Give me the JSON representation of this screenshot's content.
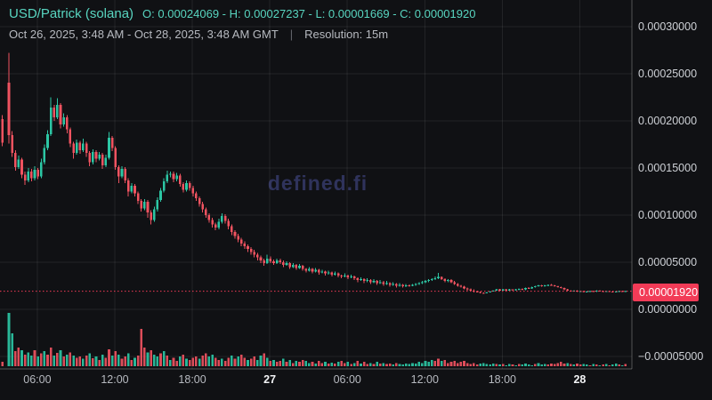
{
  "header": {
    "pair_title": "USD/Patrick (solana)",
    "ohlc_summary": "O: 0.00024069 - H: 0.00027237 - L: 0.00001669 - C: 0.00001920",
    "open": "0.00024069",
    "high": "0.00027237",
    "low": "0.00001669",
    "close": "0.00001920",
    "date_range": "Oct 26, 2025, 3:48 AM - Oct 28, 2025, 3:48 AM GMT",
    "separator": "|",
    "resolution_label": "Resolution: 15m"
  },
  "watermark": "defined.fi",
  "last_price": {
    "label": "0.00001920",
    "value": 1.92
  },
  "colors": {
    "background": "#101114",
    "accent_teal": "#58d5c0",
    "candle_up": "#2cc6a4",
    "candle_down": "#ef5360",
    "last_price_line": "#f23b57",
    "grid": "rgba(255,255,255,0.08)",
    "axis_border": "rgba(255,255,255,0.28)",
    "text_muted": "#b7bac0",
    "text_bright": "#f2f3f5",
    "watermark": "#2f335c"
  },
  "chart_data": {
    "type": "candlestick_with_volume",
    "title": "USD/Patrick (solana)",
    "resolution": "15m",
    "time_range": "Oct 26, 2025, 3:48 AM - Oct 28, 2025, 3:48 AM GMT",
    "price_unit": 1e-05,
    "range_ohlc": {
      "o": 24.069,
      "h": 27.237,
      "l": 1.669,
      "c": 1.92
    },
    "last_close": 1.92,
    "y_ticks": [
      {
        "value": 30,
        "label": "0.00030000"
      },
      {
        "value": 25,
        "label": "0.00025000"
      },
      {
        "value": 20,
        "label": "0.00020000"
      },
      {
        "value": 15,
        "label": "0.00015000"
      },
      {
        "value": 10,
        "label": "0.00010000"
      },
      {
        "value": 5,
        "label": "0.00005000"
      },
      {
        "value": 0,
        "label": "0.00000000"
      },
      {
        "value": -5,
        "label": "−0.00005000"
      }
    ],
    "x_ticks": [
      {
        "label": "06:00",
        "major": false
      },
      {
        "label": "12:00",
        "major": false
      },
      {
        "label": "18:00",
        "major": false
      },
      {
        "label": "27",
        "major": true
      },
      {
        "label": "06:00",
        "major": false
      },
      {
        "label": "12:00",
        "major": false
      },
      {
        "label": "18:00",
        "major": false
      },
      {
        "label": "28",
        "major": true
      }
    ],
    "candles": [
      [
        20.2,
        20.6,
        17.3,
        17.7
      ],
      null,
      [
        24.07,
        27.24,
        17.6,
        18.5
      ],
      [
        18.5,
        18.9,
        16.2,
        16.6
      ],
      [
        16.6,
        16.9,
        14.7,
        15.1
      ],
      [
        15.1,
        16.3,
        14.9,
        15.9
      ],
      [
        15.9,
        16.1,
        13.9,
        14.3
      ],
      [
        14.3,
        14.6,
        13.2,
        13.7
      ],
      [
        13.7,
        15,
        13.5,
        14.6
      ],
      [
        14.6,
        14.9,
        13.6,
        13.9
      ],
      [
        13.9,
        15.2,
        13.7,
        14.8
      ],
      [
        14.8,
        15,
        13.8,
        14.1
      ],
      [
        14.1,
        16,
        13.9,
        15.6
      ],
      [
        15.6,
        17.5,
        15.4,
        17.1
      ],
      [
        17.1,
        19,
        16.9,
        18.6
      ],
      [
        18.6,
        22.5,
        18.4,
        21.4
      ],
      [
        21.4,
        21.7,
        20,
        20.4
      ],
      [
        20.4,
        22.4,
        20.2,
        21.7
      ],
      [
        21.7,
        21.9,
        19.2,
        19.6
      ],
      [
        19.6,
        20.8,
        19.4,
        20.4
      ],
      [
        20.4,
        20.6,
        18.7,
        19.1
      ],
      [
        19.1,
        19.3,
        17.2,
        17.6
      ],
      [
        17.6,
        17.8,
        16,
        16.6
      ],
      [
        16.6,
        18,
        16.4,
        17.7
      ],
      [
        17.7,
        17.9,
        16.5,
        16.9
      ],
      [
        16.9,
        18.1,
        16.7,
        17.6
      ],
      [
        17.6,
        17.8,
        16.2,
        16.6
      ],
      [
        16.6,
        16.8,
        15.2,
        15.6
      ],
      [
        15.6,
        17,
        15.4,
        16.7
      ],
      [
        16.7,
        16.9,
        15.6,
        16
      ],
      [
        16,
        16.7,
        15.8,
        16.4
      ],
      [
        16.4,
        16.6,
        14.9,
        15.3
      ],
      [
        15.3,
        16.4,
        15.1,
        16.1
      ],
      [
        16.1,
        18.8,
        15.9,
        18.2
      ],
      [
        18.2,
        18.4,
        16.8,
        17.1
      ],
      [
        17.1,
        17.3,
        14.8,
        15.1
      ],
      [
        15.1,
        15.3,
        13.4,
        14.1
      ],
      [
        14.1,
        15.2,
        13.9,
        14.9
      ],
      [
        14.9,
        15.1,
        13.4,
        13.7
      ],
      [
        13.7,
        13.9,
        12,
        12.5
      ],
      [
        12.5,
        13.4,
        12.3,
        13.1
      ],
      [
        13.1,
        13.3,
        12,
        12.3
      ],
      [
        12.3,
        12.5,
        11.2,
        11.5
      ],
      [
        11.5,
        11.7,
        10.4,
        10.7
      ],
      [
        10.7,
        11.7,
        10.5,
        11.4
      ],
      [
        11.4,
        11.6,
        9.7,
        10.3
      ],
      [
        10.3,
        10.5,
        9,
        9.5
      ],
      [
        9.5,
        10.9,
        9.3,
        10.6
      ],
      [
        10.6,
        11.9,
        10.4,
        11.6
      ],
      [
        11.6,
        12.9,
        11.4,
        12.6
      ],
      [
        12.6,
        13.9,
        12.4,
        13.6
      ],
      [
        13.6,
        14.7,
        13.4,
        14.3
      ],
      [
        14.3,
        14.6,
        14,
        14.4
      ],
      [
        14.4,
        14.6,
        13.5,
        13.8
      ],
      [
        13.8,
        14.5,
        13.6,
        14.2
      ],
      [
        14.2,
        14.4,
        13,
        13.3
      ],
      [
        13.3,
        13.5,
        12.4,
        12.7
      ],
      [
        12.7,
        13.7,
        12.5,
        13.4
      ],
      [
        13.4,
        13.6,
        12.6,
        12.9
      ],
      [
        12.9,
        13.1,
        12,
        12.3
      ],
      [
        12.3,
        12.5,
        11.5,
        11.8
      ],
      [
        11.8,
        12,
        10.9,
        11.2
      ],
      [
        11.2,
        11.4,
        10.3,
        10.6
      ],
      [
        10.6,
        10.8,
        9.7,
        10
      ],
      [
        10,
        10.2,
        9.2,
        9.5
      ],
      [
        9.5,
        9.7,
        8.7,
        9
      ],
      [
        9,
        9.2,
        8.4,
        8.7
      ],
      [
        8.7,
        9.6,
        8.5,
        9.3
      ],
      [
        9.3,
        10.2,
        9.1,
        9.9
      ],
      [
        9.9,
        10.1,
        9.1,
        9.4
      ],
      [
        9.4,
        9.6,
        8.5,
        8.8
      ],
      [
        8.8,
        9,
        7.9,
        8.2
      ],
      [
        8.2,
        8.4,
        7.5,
        7.8
      ],
      [
        7.8,
        8,
        7.1,
        7.4
      ],
      [
        7.4,
        7.6,
        6.7,
        7
      ],
      [
        7,
        7.2,
        6.4,
        6.7
      ],
      [
        6.7,
        6.9,
        6.1,
        6.4
      ],
      [
        6.4,
        6.6,
        5.8,
        6.1
      ],
      [
        6.1,
        6.3,
        5.5,
        5.8
      ],
      [
        5.8,
        6,
        5.2,
        5.5
      ],
      [
        5.5,
        5.7,
        4.9,
        5.2
      ],
      [
        5.2,
        5.4,
        4.6,
        4.9
      ],
      [
        4.9,
        5.8,
        4.8,
        5.4
      ],
      [
        5.4,
        5.6,
        4.9,
        5.1
      ],
      [
        5.1,
        5.3,
        4.7,
        4.9
      ],
      [
        4.9,
        5.4,
        4.8,
        5.2
      ],
      [
        5.2,
        5.4,
        4.8,
        5
      ],
      [
        5,
        5.2,
        4.5,
        4.7
      ],
      [
        4.7,
        5.1,
        4.6,
        4.9
      ],
      [
        4.9,
        5,
        4.3,
        4.5
      ],
      [
        4.5,
        4.9,
        4.4,
        4.7
      ],
      [
        4.7,
        4.8,
        4.2,
        4.4
      ],
      [
        4.4,
        4.8,
        4.3,
        4.6
      ],
      [
        4.6,
        4.7,
        4.1,
        4.3
      ],
      [
        4.3,
        4.4,
        3.9,
        4.1
      ],
      [
        4.1,
        4.5,
        4,
        4.3
      ],
      [
        4.3,
        4.4,
        3.8,
        4
      ],
      [
        4,
        4.4,
        3.9,
        4.2
      ],
      [
        4.2,
        4.3,
        3.7,
        3.9
      ],
      [
        3.9,
        4.2,
        3.8,
        4
      ],
      [
        4,
        4.1,
        3.6,
        3.8
      ],
      [
        3.8,
        4.1,
        3.7,
        3.9
      ],
      [
        3.9,
        4,
        3.5,
        3.7
      ],
      [
        3.7,
        4,
        3.6,
        3.8
      ],
      [
        3.8,
        3.9,
        3.4,
        3.6
      ],
      [
        3.6,
        3.7,
        3.3,
        3.5
      ],
      [
        3.5,
        3.8,
        3.4,
        3.6
      ],
      [
        3.6,
        3.7,
        3.2,
        3.4
      ],
      [
        3.4,
        3.7,
        3.3,
        3.5
      ],
      [
        3.5,
        3.6,
        3.1,
        3.3
      ],
      [
        3.3,
        3.4,
        2.9,
        3.1
      ],
      [
        3.1,
        3.4,
        3,
        3.2
      ],
      [
        3.2,
        3.3,
        2.8,
        3
      ],
      [
        3,
        3.3,
        2.9,
        3.1
      ],
      [
        3.1,
        3.2,
        2.7,
        2.9
      ],
      [
        2.9,
        3.2,
        2.8,
        3
      ],
      [
        3,
        3.1,
        2.6,
        2.8
      ],
      [
        2.8,
        3.1,
        2.7,
        2.9
      ],
      [
        2.9,
        3,
        2.5,
        2.7
      ],
      [
        2.7,
        3,
        2.6,
        2.8
      ],
      [
        2.8,
        2.9,
        2.4,
        2.6
      ],
      [
        2.6,
        2.9,
        2.5,
        2.7
      ],
      [
        2.7,
        2.8,
        2.3,
        2.5
      ],
      [
        2.5,
        2.8,
        2.4,
        2.6
      ],
      [
        2.6,
        2.7,
        2.3,
        2.45
      ],
      [
        2.45,
        2.7,
        2.35,
        2.55
      ],
      [
        2.55,
        2.65,
        2.4,
        2.5
      ],
      [
        2.5,
        2.7,
        2.45,
        2.6
      ],
      [
        2.6,
        2.8,
        2.5,
        2.7
      ],
      [
        2.7,
        2.9,
        2.6,
        2.8
      ],
      [
        2.8,
        3,
        2.7,
        2.9
      ],
      [
        2.9,
        3.1,
        2.8,
        3
      ],
      [
        3,
        3.2,
        2.9,
        3.1
      ],
      [
        3.1,
        3.3,
        3,
        3.2
      ],
      [
        3.2,
        3.5,
        3.1,
        3.3
      ],
      [
        3.3,
        3.85,
        3.2,
        3.45
      ],
      [
        3.45,
        3.5,
        3.1,
        3.2
      ],
      [
        3.2,
        3.3,
        2.9,
        3
      ],
      [
        3,
        3.2,
        2.9,
        3.1
      ],
      [
        3.1,
        3.2,
        2.8,
        2.9
      ],
      [
        2.9,
        3,
        2.6,
        2.7
      ],
      [
        2.7,
        2.8,
        2.4,
        2.5
      ],
      [
        2.5,
        2.6,
        2.3,
        2.4
      ],
      [
        2.4,
        2.5,
        2.1,
        2.2
      ],
      [
        2.2,
        2.3,
        2,
        2.1
      ],
      [
        2.1,
        2.2,
        1.9,
        2
      ],
      [
        2,
        2.1,
        1.8,
        1.9
      ],
      [
        1.9,
        2,
        1.78,
        1.85
      ],
      [
        1.85,
        1.9,
        1.7,
        1.75
      ],
      [
        1.75,
        1.8,
        1.67,
        1.7
      ],
      [
        1.7,
        1.85,
        1.68,
        1.8
      ],
      [
        1.8,
        1.95,
        1.78,
        1.9
      ],
      [
        1.9,
        2.05,
        1.88,
        2
      ],
      [
        2,
        2.15,
        1.98,
        2.1
      ],
      [
        2.1,
        2.15,
        1.95,
        2
      ],
      [
        2,
        2.15,
        1.98,
        2.1
      ],
      [
        2.1,
        2.15,
        1.95,
        2
      ],
      [
        2,
        2.15,
        1.98,
        2.1
      ],
      [
        2.1,
        2.12,
        2,
        2.05
      ],
      [
        2.05,
        2.15,
        2,
        2.1
      ],
      [
        2.1,
        2.2,
        2.05,
        2.15
      ],
      [
        2.15,
        2.2,
        2.05,
        2.1
      ],
      [
        2.1,
        2.3,
        2.05,
        2.25
      ],
      [
        2.25,
        2.35,
        2.15,
        2.2
      ],
      [
        2.2,
        2.4,
        2.15,
        2.35
      ],
      [
        2.35,
        2.5,
        2.3,
        2.45
      ],
      [
        2.45,
        2.6,
        2.4,
        2.55
      ],
      [
        2.55,
        2.6,
        2.4,
        2.45
      ],
      [
        2.45,
        2.6,
        2.4,
        2.55
      ],
      [
        2.55,
        2.65,
        2.45,
        2.6
      ],
      [
        2.6,
        2.7,
        2.5,
        2.55
      ],
      [
        2.55,
        2.6,
        2.4,
        2.45
      ],
      [
        2.45,
        2.5,
        2.3,
        2.35
      ],
      [
        2.35,
        2.4,
        2.2,
        2.25
      ],
      [
        2.25,
        2.3,
        2.05,
        2.1
      ],
      [
        2.1,
        2.15,
        1.95,
        2
      ],
      [
        2,
        2.05,
        1.9,
        1.95
      ],
      [
        1.95,
        2.05,
        1.9,
        2
      ],
      [
        2,
        2.05,
        1.85,
        1.9
      ],
      [
        1.9,
        2,
        1.85,
        1.95
      ],
      [
        1.95,
        2,
        1.8,
        1.85
      ],
      [
        1.85,
        1.95,
        1.8,
        1.9
      ],
      [
        1.9,
        2,
        1.85,
        1.95
      ],
      [
        1.95,
        2,
        1.85,
        1.9
      ],
      [
        1.9,
        2.05,
        1.85,
        2
      ],
      [
        2,
        2.05,
        1.9,
        1.95
      ],
      [
        1.95,
        2,
        1.85,
        1.9
      ],
      [
        1.9,
        2,
        1.85,
        1.95
      ],
      [
        1.95,
        2,
        1.85,
        1.9
      ],
      [
        1.9,
        1.95,
        1.8,
        1.85
      ],
      [
        1.85,
        1.95,
        1.8,
        1.9
      ],
      [
        1.9,
        2,
        1.85,
        1.95
      ],
      [
        1.95,
        2,
        1.85,
        1.9
      ],
      [
        1.9,
        1.97,
        1.87,
        1.92
      ]
    ],
    "volumes": [
      8,
      0,
      100,
      62,
      28,
      35,
      30,
      22,
      26,
      20,
      30,
      18,
      24,
      28,
      22,
      35,
      20,
      25,
      30,
      18,
      22,
      26,
      20,
      16,
      18,
      14,
      20,
      24,
      15,
      18,
      12,
      22,
      16,
      32,
      20,
      28,
      22,
      14,
      18,
      24,
      12,
      16,
      20,
      70,
      35,
      26,
      30,
      22,
      18,
      24,
      28,
      20,
      12,
      16,
      10,
      18,
      22,
      14,
      12,
      16,
      18,
      14,
      20,
      24,
      18,
      22,
      16,
      12,
      14,
      10,
      16,
      20,
      14,
      18,
      22,
      16,
      12,
      14,
      18,
      12,
      20,
      24,
      16,
      10,
      12,
      8,
      10,
      14,
      8,
      12,
      6,
      10,
      8,
      12,
      10,
      6,
      8,
      5,
      10,
      6,
      8,
      5,
      7,
      5,
      8,
      10,
      6,
      8,
      4,
      6,
      10,
      5,
      8,
      4,
      6,
      4,
      8,
      5,
      6,
      4,
      5,
      3,
      6,
      4,
      3,
      5,
      4,
      6,
      5,
      8,
      6,
      10,
      8,
      12,
      10,
      14,
      10,
      12,
      6,
      8,
      10,
      6,
      8,
      10,
      6,
      4,
      6,
      3,
      5,
      6,
      4,
      3,
      5,
      4,
      3,
      4,
      2,
      4,
      3,
      2,
      4,
      3,
      5,
      3,
      2,
      4,
      6,
      3,
      4,
      3,
      5,
      4,
      6,
      8,
      5,
      6,
      4,
      3,
      5,
      3,
      4,
      3,
      2,
      4,
      3,
      2,
      3,
      4,
      2,
      3,
      5,
      3,
      2,
      4
    ],
    "volume_colors": "rrggrrgrggrgrgrrgrgrgrgrrgrgrgrgrrgrgrrgrgrrrgrggrgrgrrgrgrrrgrrggrrgrrgrgrrgrrggrgrgrrgrgrgrrggrgrrgrgrgrrgrgrgrrgrgrgrrgrgggggggggggrrgrrrrrrrrrrrgggggrgrggrgrggggrgggrrrrrrgrgrrggrgrgrgrggrgrg"
  }
}
